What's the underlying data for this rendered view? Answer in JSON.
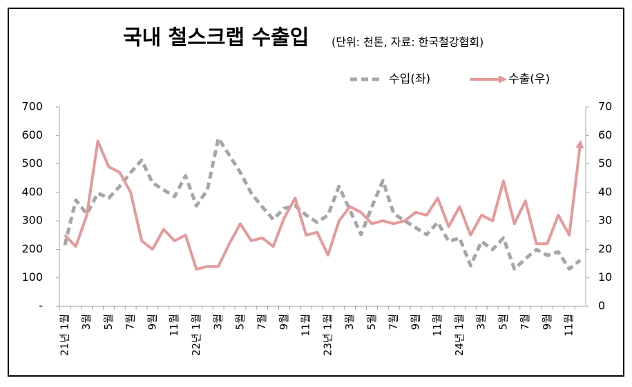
{
  "chart_data": {
    "type": "line",
    "title": "국내 철스크랩 수출입",
    "subtitle": "(단위: 천톤, 자료: 한국철강협회)",
    "categories": [
      "21년 1월",
      null,
      "3월",
      null,
      "5월",
      null,
      "7월",
      null,
      "9월",
      null,
      "11월",
      null,
      "22년 1월",
      null,
      "3월",
      null,
      "5월",
      null,
      "7월",
      null,
      "9월",
      null,
      "11월",
      null,
      "23년 1월",
      null,
      "3월",
      null,
      "5월",
      null,
      "7월",
      null,
      "9월",
      null,
      "11월",
      null,
      "24년 1월",
      null,
      "3월",
      null,
      "5월",
      null,
      "7월",
      null,
      "9월",
      null,
      "11월",
      null
    ],
    "series": [
      {
        "name": "수입(좌)",
        "color": "#a6a6a6",
        "axis": "y",
        "dashed": true,
        "values": [
          215,
          373,
          324,
          397,
          380,
          421,
          470,
          513,
          433,
          409,
          385,
          458,
          353,
          409,
          590,
          530,
          470,
          397,
          349,
          305,
          344,
          353,
          320,
          295,
          320,
          421,
          337,
          252,
          349,
          441,
          324,
          300,
          276,
          252,
          295,
          228,
          240,
          143,
          228,
          199,
          240,
          131,
          167,
          199,
          179,
          191,
          131,
          162
        ]
      },
      {
        "name": "수출(우)",
        "color": "#e6999a",
        "axis": "y2",
        "arrow": true,
        "values": [
          25,
          21,
          32,
          58,
          49,
          47,
          40,
          23,
          20,
          27,
          23,
          25,
          13,
          14,
          14,
          22,
          29,
          23,
          24,
          21,
          31,
          38,
          25,
          26,
          18,
          30,
          35,
          33,
          29,
          30,
          29,
          30,
          33,
          32,
          38,
          28,
          35,
          25,
          32,
          30,
          44,
          29,
          37,
          22,
          22,
          32,
          25,
          57
        ]
      }
    ],
    "ylim": [
      0,
      700
    ],
    "yticks": [
      {
        "value": 0,
        "label": "-"
      },
      100,
      200,
      300,
      400,
      500,
      600,
      700
    ],
    "y2lim": [
      0,
      70
    ],
    "y2ticks": [
      0,
      10,
      20,
      30,
      40,
      50,
      60,
      70
    ]
  }
}
